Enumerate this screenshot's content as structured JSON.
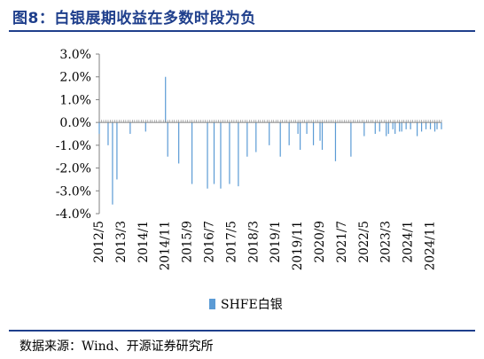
{
  "figure": {
    "title": "图8：白银展期收益在多数时段为负",
    "source": "数据来源：Wind、开源证券研究所"
  },
  "chart_data": {
    "type": "bar",
    "title": "",
    "xlabel": "",
    "ylabel": "",
    "ylim": [
      -0.04,
      0.03
    ],
    "y_ticks": [
      {
        "value": 0.03,
        "label": "3.0%"
      },
      {
        "value": 0.02,
        "label": "2.0%"
      },
      {
        "value": 0.01,
        "label": "1.0%"
      },
      {
        "value": 0.0,
        "label": "0.0%"
      },
      {
        "value": -0.01,
        "label": "-1.0%"
      },
      {
        "value": -0.02,
        "label": "-2.0%"
      },
      {
        "value": -0.03,
        "label": "-3.0%"
      },
      {
        "value": -0.04,
        "label": "-4.0%"
      }
    ],
    "x_tick_labels": [
      "2012/5",
      "2013/3",
      "2014/1",
      "2014/11",
      "2015/9",
      "2016/7",
      "2017/5",
      "2018/3",
      "2019/1",
      "2019/11",
      "2020/9",
      "2021/7",
      "2022/5",
      "2023/3",
      "2024/1",
      "2024/11"
    ],
    "x_start": "2012/5",
    "x_end": "2025/4",
    "legend_position": "bottom",
    "color": "#5b9bd5",
    "series": [
      {
        "name": "SHFE白银",
        "x": [
          "2012/5",
          "2012/9",
          "2012/11",
          "2013/1",
          "2013/7",
          "2014/2",
          "2014/11",
          "2014/12",
          "2015/5",
          "2015/11",
          "2016/6",
          "2016/9",
          "2016/12",
          "2017/4",
          "2017/8",
          "2017/12",
          "2018/4",
          "2018/10",
          "2019/3",
          "2019/7",
          "2019/11",
          "2019/12",
          "2020/3",
          "2020/6",
          "2020/9",
          "2020/10",
          "2021/4",
          "2021/11",
          "2022/5",
          "2022/10",
          "2022/12",
          "2023/3",
          "2023/4",
          "2023/6",
          "2023/7",
          "2023/9",
          "2023/10",
          "2023/12",
          "2024/2",
          "2024/5",
          "2024/7",
          "2024/9",
          "2024/11",
          "2025/1",
          "2025/2",
          "2025/4"
        ],
        "values": [
          -0.005,
          -0.01,
          -0.036,
          -0.025,
          -0.005,
          -0.004,
          0.02,
          -0.015,
          -0.018,
          -0.027,
          -0.029,
          -0.027,
          -0.029,
          -0.027,
          -0.028,
          -0.015,
          -0.013,
          -0.01,
          -0.015,
          -0.01,
          -0.005,
          -0.012,
          -0.005,
          -0.01,
          -0.008,
          -0.012,
          -0.017,
          -0.015,
          -0.006,
          -0.005,
          -0.004,
          -0.006,
          -0.005,
          -0.003,
          -0.005,
          -0.004,
          -0.004,
          -0.003,
          -0.003,
          -0.006,
          -0.004,
          -0.003,
          -0.003,
          -0.004,
          -0.003,
          -0.003
        ]
      }
    ]
  }
}
